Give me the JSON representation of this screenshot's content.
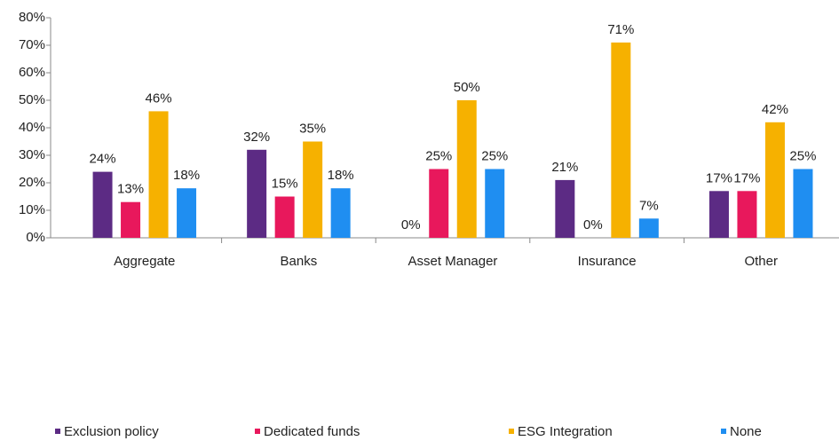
{
  "chart_data": {
    "type": "bar",
    "categories": [
      "Aggregate",
      "Banks",
      "Asset Manager",
      "Insurance",
      "Other"
    ],
    "series": [
      {
        "name": "Exclusion policy",
        "color": "#5c2b84",
        "values": [
          24,
          32,
          0,
          21,
          17
        ],
        "value_labels": [
          "24%",
          "32%",
          "0%",
          "21%",
          "17%"
        ]
      },
      {
        "name": "Dedicated funds",
        "color": "#e8185c",
        "values": [
          13,
          15,
          25,
          0,
          17
        ],
        "value_labels": [
          "13%",
          "15%",
          "25%",
          "0%",
          "17%"
        ]
      },
      {
        "name": "ESG Integration",
        "color": "#f6b100",
        "values": [
          46,
          35,
          50,
          71,
          42
        ],
        "value_labels": [
          "46%",
          "35%",
          "50%",
          "71%",
          "42%"
        ]
      },
      {
        "name": "None",
        "color": "#1f8ef1",
        "values": [
          18,
          18,
          25,
          7,
          25
        ],
        "value_labels": [
          "18%",
          "18%",
          "25%",
          "7%",
          "25%"
        ]
      }
    ],
    "ylim": [
      0,
      80
    ],
    "yticks": [
      {
        "value": 0,
        "label": "0%"
      },
      {
        "value": 10,
        "label": "10%"
      },
      {
        "value": 20,
        "label": "20%"
      },
      {
        "value": 30,
        "label": "30%"
      },
      {
        "value": 40,
        "label": "40%"
      },
      {
        "value": 50,
        "label": "50%"
      },
      {
        "value": 60,
        "label": "60%"
      },
      {
        "value": 70,
        "label": "70%"
      },
      {
        "value": 80,
        "label": "80%"
      }
    ],
    "grid": false,
    "legend": "bottom"
  }
}
